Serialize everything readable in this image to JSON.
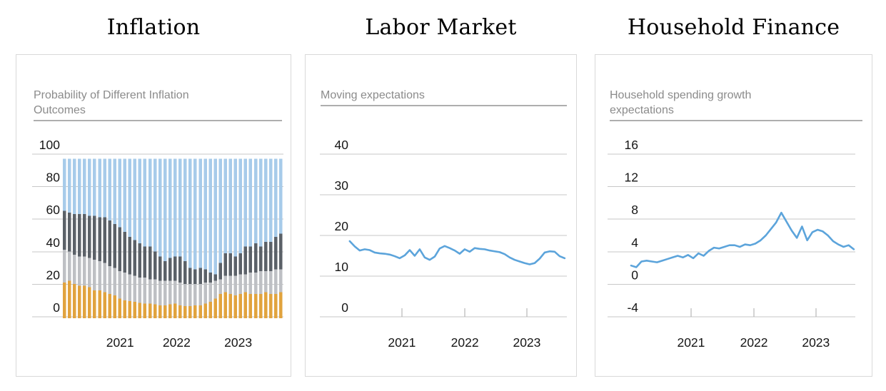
{
  "accent_colors": {
    "bar_blue": "#a7cbea",
    "bar_dark_gray": "#5b6168",
    "bar_light_gray": "#bec0c4",
    "bar_orange": "#e1a33e",
    "line_blue": "#5ca4db",
    "gridline": "#c7c7c7",
    "subtitle_gray": "#8b8b8b"
  },
  "chart_data": [
    {
      "type": "stacked_bar",
      "title": "Inflation",
      "subtitle": "Probability of Different Inflation\nOutcomes",
      "ylim": [
        0,
        100
      ],
      "y_ticks": [
        100,
        80,
        60,
        40,
        20,
        0
      ],
      "x_tick_labels": [
        "2021",
        "2022",
        "2023"
      ],
      "grid": true,
      "legend": "none",
      "show_x_tickmarks": false,
      "stack_order_bottom_to_top": [
        "segment-orange",
        "segment-light-gray",
        "segment-dark-gray",
        "segment-blue"
      ],
      "series": [
        {
          "name": "segment-orange",
          "color": "#e1a33e",
          "values": [
            22,
            23,
            21,
            20,
            20,
            19,
            17,
            17,
            16,
            15,
            14,
            12,
            11,
            10.5,
            10,
            9.5,
            9,
            9,
            8.5,
            8,
            8,
            8.5,
            9,
            8,
            7.5,
            7.5,
            8,
            8,
            9,
            10,
            12,
            15,
            16,
            15,
            14,
            15,
            16,
            15,
            15,
            15,
            16,
            15,
            15,
            16
          ]
        },
        {
          "name": "segment-light-gray",
          "color": "#bec0c4",
          "values": [
            20,
            18,
            18,
            18,
            18,
            18,
            19,
            18,
            18,
            17,
            17,
            17,
            17,
            16.5,
            16,
            15.5,
            16,
            15,
            15.5,
            15,
            15,
            14.5,
            14,
            14,
            13.5,
            13.5,
            13,
            13,
            13,
            12,
            11,
            9,
            10,
            11,
            12,
            12,
            11,
            13,
            13,
            14,
            13,
            14,
            15,
            14
          ]
        },
        {
          "name": "segment-dark-gray",
          "color": "#5b6168",
          "values": [
            24,
            24,
            25,
            26,
            26,
            26,
            27,
            27,
            28,
            28,
            27,
            27,
            25,
            23,
            22,
            21,
            19,
            20,
            17,
            15,
            12,
            14,
            15,
            16,
            14,
            10,
            9,
            10,
            8,
            6,
            4,
            10,
            14,
            14,
            12,
            13,
            17,
            16,
            18,
            15,
            18,
            18,
            20,
            22
          ]
        },
        {
          "name": "segment-blue",
          "color": "#a7cbea",
          "values": [
            32,
            33,
            34,
            34,
            34,
            35,
            35,
            36,
            36,
            38,
            40,
            42,
            45,
            48,
            50,
            52,
            54,
            54,
            57,
            60,
            63,
            61,
            60,
            60,
            63,
            67,
            68,
            67,
            68,
            70,
            71,
            64,
            58,
            58,
            60,
            58,
            54,
            54,
            52,
            54,
            51,
            51,
            48,
            46
          ]
        }
      ]
    },
    {
      "type": "line",
      "title": "Labor Market",
      "subtitle": "Moving expectations",
      "ylim": [
        0,
        40
      ],
      "y_ticks": [
        40,
        30,
        20,
        10,
        0
      ],
      "x_tick_labels": [
        "2021",
        "2022",
        "2023"
      ],
      "grid": true,
      "legend": "none",
      "show_x_tickmarks": true,
      "series": [
        {
          "name": "moving-expectations",
          "color": "#5ca4db",
          "values": [
            18.6,
            17.3,
            16.3,
            16.6,
            16.4,
            15.8,
            15.6,
            15.5,
            15.3,
            14.9,
            14.4,
            15.1,
            16.4,
            15.0,
            16.6,
            14.6,
            14.0,
            14.8,
            16.8,
            17.4,
            16.9,
            16.3,
            15.5,
            16.6,
            16.0,
            16.9,
            16.7,
            16.6,
            16.3,
            16.1,
            15.9,
            15.4,
            14.6,
            14.0,
            13.6,
            13.2,
            12.9,
            13.2,
            14.3,
            15.8,
            16.1,
            16.0,
            14.9,
            14.4
          ]
        }
      ]
    },
    {
      "type": "line",
      "title": "Household Finance",
      "subtitle": "Household spending growth\nexpectations",
      "ylim": [
        -4,
        16
      ],
      "y_ticks": [
        16,
        12,
        8,
        4,
        0,
        -4
      ],
      "x_tick_labels": [
        "2021",
        "2022",
        "2023"
      ],
      "grid": true,
      "legend": "none",
      "show_x_tickmarks": true,
      "series": [
        {
          "name": "household-spending-growth-expectations",
          "color": "#5ca4db",
          "values": [
            2.3,
            2.1,
            2.8,
            2.9,
            2.8,
            2.7,
            2.9,
            3.1,
            3.3,
            3.5,
            3.3,
            3.6,
            3.2,
            3.8,
            3.5,
            4.1,
            4.5,
            4.4,
            4.6,
            4.8,
            4.8,
            4.6,
            4.9,
            4.8,
            5.0,
            5.4,
            6.0,
            6.8,
            7.6,
            8.8,
            7.7,
            6.6,
            5.7,
            7.1,
            5.4,
            6.4,
            6.7,
            6.5,
            6.0,
            5.3,
            4.9,
            4.6,
            4.8,
            4.3
          ]
        }
      ]
    }
  ]
}
